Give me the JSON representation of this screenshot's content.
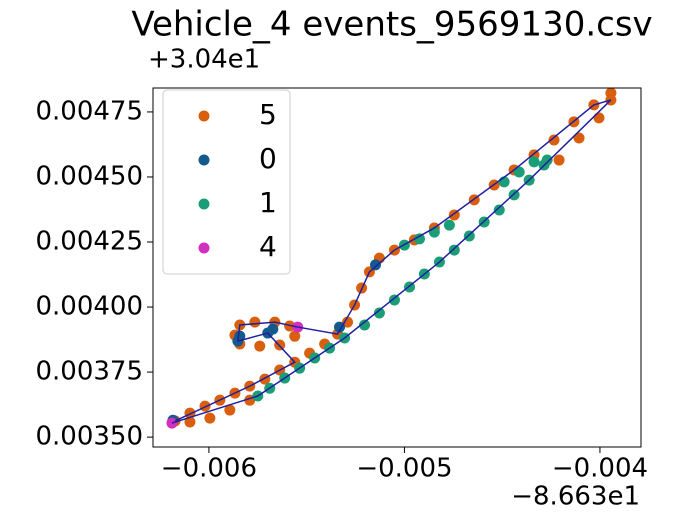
{
  "chart_data": {
    "type": "scatter",
    "title": "Vehicle_4 events_9569130.csv",
    "x_offset_text": "−8.663e1",
    "y_offset_text": "+3.04e1",
    "xlim": [
      -0.006286,
      -0.00379
    ],
    "ylim": [
      0.003462,
      0.004842
    ],
    "xticks": [
      {
        "value": -0.006,
        "label": "−0.006"
      },
      {
        "value": -0.005,
        "label": "−0.005"
      },
      {
        "value": -0.004,
        "label": "−0.004"
      }
    ],
    "yticks": [
      {
        "value": 0.0035,
        "label": "0.00350"
      },
      {
        "value": 0.00375,
        "label": "0.00375"
      },
      {
        "value": 0.004,
        "label": "0.00400"
      },
      {
        "value": 0.00425,
        "label": "0.00425"
      },
      {
        "value": 0.0045,
        "label": "0.00450"
      },
      {
        "value": 0.00475,
        "label": "0.00475"
      }
    ],
    "legend": "upper left",
    "line": {
      "color": "#1f1fa0",
      "x": [
        -0.006189,
        -0.00575,
        -0.005306,
        -0.004821,
        -0.004362,
        -0.003944,
        -0.004031,
        -0.004439,
        -0.004847,
        -0.005051,
        -0.005179,
        -0.005255,
        -0.005342,
        -0.005546,
        -0.005663,
        -0.005842,
        -0.005852,
        -0.005699,
        -0.005561,
        -0.005791,
        -0.006173
      ],
      "y": [
        0.003554,
        0.003658,
        0.003881,
        0.004173,
        0.004488,
        0.004796,
        0.004777,
        0.004527,
        0.004304,
        0.004219,
        0.004135,
        0.004008,
        0.003896,
        0.003923,
        0.003942,
        0.003931,
        0.003869,
        0.0039,
        0.003788,
        0.003696,
        0.003562
      ]
    },
    "series": [
      {
        "name": "5",
        "color": "#d95f0e",
        "x": [
          -0.006173,
          -0.006097,
          -0.00602,
          -0.005944,
          -0.005867,
          -0.005791,
          -0.005714,
          -0.005638,
          -0.005561,
          -0.005485,
          -0.005408,
          -0.005342,
          -0.005291,
          -0.005255,
          -0.005219,
          -0.005179,
          -0.005128,
          -0.005051,
          -0.004949,
          -0.004847,
          -0.004745,
          -0.004643,
          -0.004541,
          -0.004439,
          -0.004337,
          -0.004235,
          -0.004133,
          -0.004031,
          -0.003944,
          -0.003944,
          -0.004005,
          -0.004107,
          -0.004209,
          -0.006097,
          -0.005995,
          -0.005893,
          -0.005791,
          -0.005842,
          -0.005765,
          -0.005663,
          -0.005587,
          -0.005561,
          -0.005638,
          -0.00574,
          -0.005842,
          -0.005867
        ],
        "values": [
          0.003562,
          0.003592,
          0.003619,
          0.003642,
          0.003669,
          0.003696,
          0.003723,
          0.003758,
          0.003788,
          0.003823,
          0.003858,
          0.003896,
          0.003942,
          0.004008,
          0.004073,
          0.004135,
          0.004188,
          0.004219,
          0.004258,
          0.004304,
          0.004354,
          0.004412,
          0.004469,
          0.004527,
          0.004585,
          0.004642,
          0.004712,
          0.004777,
          0.004823,
          0.004796,
          0.004727,
          0.00465,
          0.004565,
          0.003558,
          0.003573,
          0.003604,
          0.003642,
          0.003931,
          0.003942,
          0.003942,
          0.003927,
          0.003888,
          0.003854,
          0.00385,
          0.003858,
          0.003892
        ]
      },
      {
        "name": "0",
        "color": "#145a8c",
        "x": [
          -0.006184,
          -0.005852,
          -0.005842,
          -0.005699,
          -0.005673,
          -0.005332,
          -0.005148
        ],
        "values": [
          0.003565,
          0.003869,
          0.003888,
          0.0039,
          0.003915,
          0.003923,
          0.004162
        ]
      },
      {
        "name": "1",
        "color": "#1b9e77",
        "x": [
          -0.005,
          -0.004923,
          -0.004847,
          -0.00477,
          -0.00449,
          -0.004413,
          -0.004337,
          -0.00427,
          -0.004286,
          -0.004362,
          -0.004439,
          -0.004515,
          -0.004592,
          -0.004668,
          -0.004745,
          -0.004821,
          -0.004898,
          -0.004974,
          -0.005051,
          -0.005128,
          -0.005204,
          -0.005306,
          -0.005383,
          -0.005459,
          -0.005536,
          -0.005612,
          -0.005689,
          -0.00575
        ],
        "values": [
          0.004238,
          0.004262,
          0.004288,
          0.004315,
          0.004481,
          0.004519,
          0.004558,
          0.004565,
          0.004546,
          0.004488,
          0.004431,
          0.004373,
          0.004327,
          0.004273,
          0.004219,
          0.004173,
          0.004127,
          0.004077,
          0.004027,
          0.003977,
          0.003931,
          0.003881,
          0.003842,
          0.003804,
          0.003765,
          0.003727,
          0.003688,
          0.003658
        ]
      },
      {
        "name": "4",
        "color": "#d12fbd",
        "x": [
          -0.006189,
          -0.005546
        ],
        "values": [
          0.003554,
          0.003923
        ]
      }
    ]
  }
}
